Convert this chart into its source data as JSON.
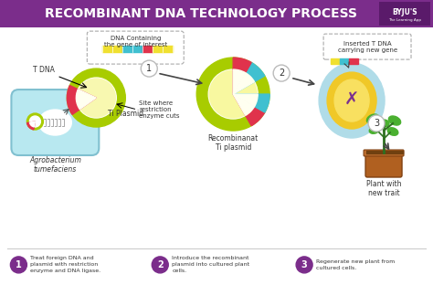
{
  "title": "RECOMBINANT DNA TECHNOLOGY PROCESS",
  "title_bg": "#7b2d8b",
  "title_color": "#ffffff",
  "bg_color": "#ffffff",
  "step_circle_color": "#7b2d8b",
  "steps": [
    "Treat foreign DNA and\nplasmid with restriction\nenzyme and DNA ligase.",
    "Introduce the recombinant\nplasmid into cultured plant\ncells.",
    "Regenerate new plant from\ncultured cells."
  ],
  "labels": {
    "t_dna": "T DNA",
    "ti_plasmid": "Ti Plasmid",
    "site_restriction": "Site where\nrestriction\nenzyme cuts",
    "agrobacterium": "Agrobacterium\ntumefaciens",
    "dna_gene": "DNA Containing\nthe gene of interest",
    "recombinant": "Recombinanat\nTi plasmid",
    "inserted_tdna": "Inserted T DNA\ncarrying new gene",
    "plant": "Plant with\nnew trait"
  },
  "colors": {
    "yellow_green": "#a8cc00",
    "bright_yellow": "#f5e642",
    "red_pink": "#e0334c",
    "cyan_blue": "#40c0d0",
    "light_blue": "#b0dce8",
    "yellow_orange": "#f0c828",
    "purple": "#7b2d8b",
    "brown": "#b06020",
    "dark_green": "#2e7020",
    "leaf_green": "#4ab030",
    "bact_blue": "#b8e8f0",
    "inner_cream": "#fffff0",
    "glow_yellow": "#f8f8a0"
  }
}
